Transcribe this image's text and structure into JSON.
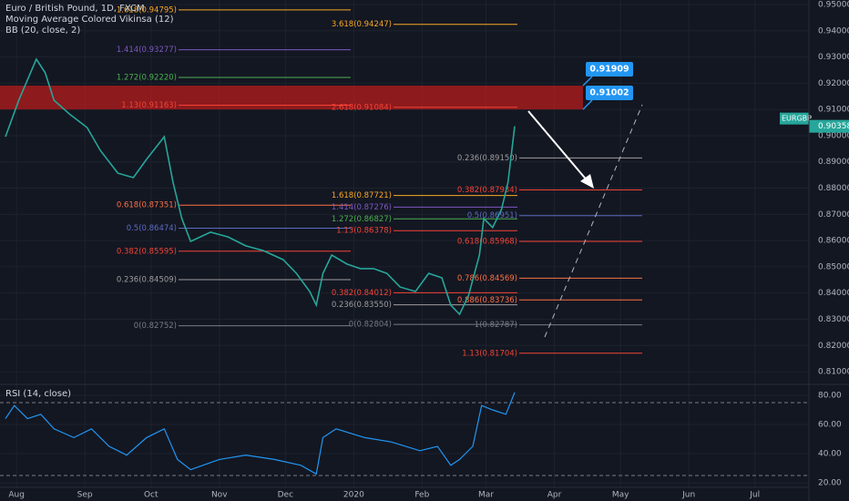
{
  "chart_data": {
    "type": "line",
    "title": "Euro / British Pound, 1D, FXCM",
    "indicators": [
      "Moving Average Colored Vikinsa (12)",
      "BB (20, close, 2)"
    ],
    "xlim": [
      -7.5,
      359.5
    ],
    "xticks": [
      {
        "value": 0,
        "label": "Aug"
      },
      {
        "value": 31,
        "label": "Sep"
      },
      {
        "value": 61,
        "label": "Oct"
      },
      {
        "value": 92,
        "label": "Nov"
      },
      {
        "value": 122,
        "label": "Dec"
      },
      {
        "value": 153,
        "label": "2020"
      },
      {
        "value": 184,
        "label": "Feb"
      },
      {
        "value": 213,
        "label": "Mar"
      },
      {
        "value": 244,
        "label": "Apr"
      },
      {
        "value": 274,
        "label": "May"
      },
      {
        "value": 305,
        "label": "Jun"
      },
      {
        "value": 335,
        "label": "Jul"
      }
    ],
    "ylim": [
      0.80516,
      0.95174
    ],
    "yticks": [
      {
        "value": 0.81,
        "label": "0.81000"
      },
      {
        "value": 0.82,
        "label": "0.82000"
      },
      {
        "value": 0.83,
        "label": "0.83000"
      },
      {
        "value": 0.84,
        "label": "0.84000"
      },
      {
        "value": 0.85,
        "label": "0.85000"
      },
      {
        "value": 0.86,
        "label": "0.86000"
      },
      {
        "value": 0.87,
        "label": "0.87000"
      },
      {
        "value": 0.88,
        "label": "0.88000"
      },
      {
        "value": 0.89,
        "label": "0.89000"
      },
      {
        "value": 0.9,
        "label": "0.90000"
      },
      {
        "value": 0.91,
        "label": "0.91000"
      },
      {
        "value": 0.92,
        "label": "0.92000"
      },
      {
        "value": 0.93,
        "label": "0.93000"
      },
      {
        "value": 0.94,
        "label": "0.94000"
      },
      {
        "value": 0.95,
        "label": "0.95000"
      }
    ],
    "grid": true,
    "series": [
      {
        "name": "EURGBP",
        "color": "#26a69a",
        "x": [
          -5,
          1,
          9,
          13,
          17,
          24,
          32,
          38,
          46,
          53,
          59,
          67,
          71,
          75,
          79,
          88,
          96,
          104,
          112,
          121,
          127,
          133,
          136,
          139,
          143,
          150,
          156,
          162,
          168,
          174,
          181,
          187,
          193,
          197,
          201,
          205,
          210,
          212,
          216,
          220,
          223,
          226
        ],
        "values": [
          0.8996,
          0.9135,
          0.9292,
          0.924,
          0.9135,
          0.9083,
          0.9031,
          0.8944,
          0.8857,
          0.884,
          0.891,
          0.8996,
          0.8823,
          0.8684,
          0.8597,
          0.8632,
          0.8614,
          0.858,
          0.8562,
          0.8527,
          0.8475,
          0.8406,
          0.8354,
          0.8475,
          0.8545,
          0.851,
          0.8493,
          0.8493,
          0.8475,
          0.8423,
          0.8406,
          0.8475,
          0.8458,
          0.8354,
          0.8319,
          0.8389,
          0.8545,
          0.8684,
          0.865,
          0.8719,
          0.8823,
          0.9036
        ]
      }
    ],
    "last_price": {
      "value": 0.90358,
      "label": "0.90358"
    },
    "callouts": [
      {
        "value": 0.91909,
        "label": "0.91909"
      },
      {
        "value": 0.91002,
        "label": "0.91002"
      }
    ],
    "fib_sets": [
      [
        {
          "label": "1.618(0.94795)",
          "value": 0.94795,
          "color": "#f9a825"
        },
        {
          "label": "1.414(0.93277)",
          "value": 0.93277,
          "color": "#7e57c2"
        },
        {
          "label": "1.272(0.92220)",
          "value": 0.9222,
          "color": "#4caf50"
        },
        {
          "label": "1.13(0.91163)",
          "value": 0.91163,
          "color": "#f44336"
        },
        {
          "label": "0.618(0.87351)",
          "value": 0.87351,
          "color": "#ff7043"
        },
        {
          "label": "0.5(0.86474)",
          "value": 0.86474,
          "color": "#5c6bc0"
        },
        {
          "label": "0.382(0.85595)",
          "value": 0.85595,
          "color": "#f44336"
        },
        {
          "label": "0.236(0.84509)",
          "value": 0.84509,
          "color": "#9e9e9e"
        },
        {
          "label": "0(0.82752)",
          "value": 0.82752,
          "color": "#787b86"
        }
      ],
      [
        {
          "label": "3.618(0.94247)",
          "value": 0.94247,
          "color": "#f9a825"
        },
        {
          "label": "2.618(0.91084)",
          "value": 0.91084,
          "color": "#f44336"
        },
        {
          "label": "1.618(0.87721)",
          "value": 0.87721,
          "color": "#f9a825"
        },
        {
          "label": "1.414(0.87276)",
          "value": 0.87276,
          "color": "#7e57c2"
        },
        {
          "label": "1.272(0.86827)",
          "value": 0.86827,
          "color": "#4caf50"
        },
        {
          "label": "1.13(0.86378)",
          "value": 0.86378,
          "color": "#f44336"
        },
        {
          "label": "0.382(0.84012)",
          "value": 0.84012,
          "color": "#f44336"
        },
        {
          "label": "0.236(0.83550)",
          "value": 0.8355,
          "color": "#9e9e9e"
        },
        {
          "label": "0(0.82804)",
          "value": 0.82804,
          "color": "#787b86"
        }
      ],
      [
        {
          "label": "0.236(0.89150)",
          "value": 0.8915,
          "color": "#9e9e9e"
        },
        {
          "label": "0.382(0.87934)",
          "value": 0.87934,
          "color": "#f44336"
        },
        {
          "label": "0.5(0.86951)",
          "value": 0.86951,
          "color": "#5c6bc0"
        },
        {
          "label": "0.618(0.85968)",
          "value": 0.85968,
          "color": "#f44336"
        },
        {
          "label": "0.786(0.84569)",
          "value": 0.84569,
          "color": "#ff7043"
        },
        {
          "label": "0.886(0.83736)",
          "value": 0.83736,
          "color": "#ff7043"
        },
        {
          "label": "1(0.82787)",
          "value": 0.82787,
          "color": "#787b86"
        },
        {
          "label": "1.13(0.81704)",
          "value": 0.81704,
          "color": "#f44336"
        }
      ]
    ],
    "rsi": {
      "title": "RSI (14, close)",
      "color": "#2196f3",
      "ylim": [
        16.875,
        87.5
      ],
      "yticks": [
        {
          "value": 20,
          "label": "20.00"
        },
        {
          "value": 40,
          "label": "40.00"
        },
        {
          "value": 60,
          "label": "60.00"
        },
        {
          "value": 80,
          "label": "80.00"
        }
      ],
      "bands": [
        75,
        25
      ],
      "x": [
        -5,
        -1,
        5,
        11,
        17,
        26,
        34,
        42,
        50,
        59,
        67,
        73,
        79,
        92,
        104,
        117,
        129,
        136,
        139,
        145,
        158,
        170,
        183,
        191,
        197,
        201,
        207,
        211,
        216,
        222,
        226
      ],
      "values": [
        64,
        73,
        64,
        67,
        57,
        51,
        57,
        45,
        39,
        51,
        57,
        36,
        29,
        36,
        39,
        36,
        32,
        26,
        51,
        57,
        51,
        48,
        42,
        45,
        32,
        36,
        45,
        73,
        70,
        67,
        82
      ]
    }
  }
}
